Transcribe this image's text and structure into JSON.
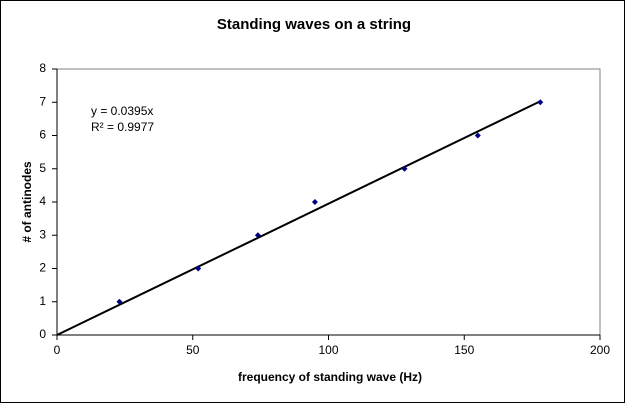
{
  "chart_data": {
    "type": "scatter",
    "title": "Standing waves on a string",
    "x_label": "frequency of standing wave (Hz)",
    "y_label": "# of antinodes",
    "x": [
      23,
      52,
      74,
      95,
      128,
      155,
      178
    ],
    "values": [
      1,
      2,
      3,
      4,
      5,
      6,
      7
    ],
    "color": "#000080",
    "xlim": [
      0,
      200
    ],
    "xticks": [
      0,
      50,
      100,
      150,
      200
    ],
    "ylim": [
      0,
      8
    ],
    "yticks": [
      0,
      1,
      2,
      3,
      4,
      5,
      6,
      7,
      8
    ],
    "grid": false,
    "trendline": {
      "equation": "y = 0.0395x",
      "r_squared": "R² = 0.9977",
      "slope": 0.0395,
      "color": "#000000"
    }
  }
}
